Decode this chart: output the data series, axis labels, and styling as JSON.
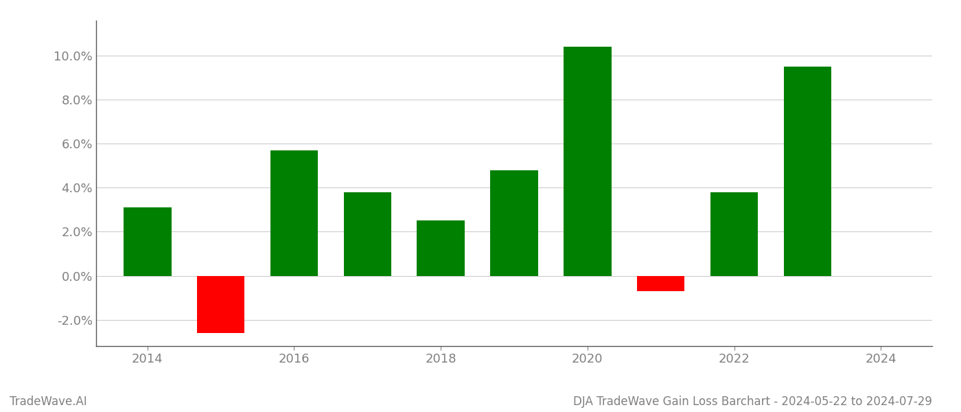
{
  "years": [
    2014,
    2015,
    2016,
    2017,
    2018,
    2019,
    2020,
    2021,
    2022,
    2023
  ],
  "values": [
    0.031,
    -0.026,
    0.057,
    0.038,
    0.025,
    0.048,
    0.104,
    -0.007,
    0.038,
    0.095
  ],
  "bar_colors_positive": "#008000",
  "bar_colors_negative": "#ff0000",
  "ylabel_ticks": [
    -0.02,
    0.0,
    0.02,
    0.04,
    0.06,
    0.08,
    0.1
  ],
  "ylim": [
    -0.032,
    0.116
  ],
  "xlim": [
    2013.3,
    2024.7
  ],
  "title": "DJA TradeWave Gain Loss Barchart - 2024-05-22 to 2024-07-29",
  "watermark": "TradeWave.AI",
  "background_color": "#ffffff",
  "bar_width": 0.65,
  "grid_color": "#cccccc",
  "tick_color": "#808080",
  "spine_color": "#555555",
  "title_fontsize": 12,
  "watermark_fontsize": 12,
  "tick_fontsize": 13
}
